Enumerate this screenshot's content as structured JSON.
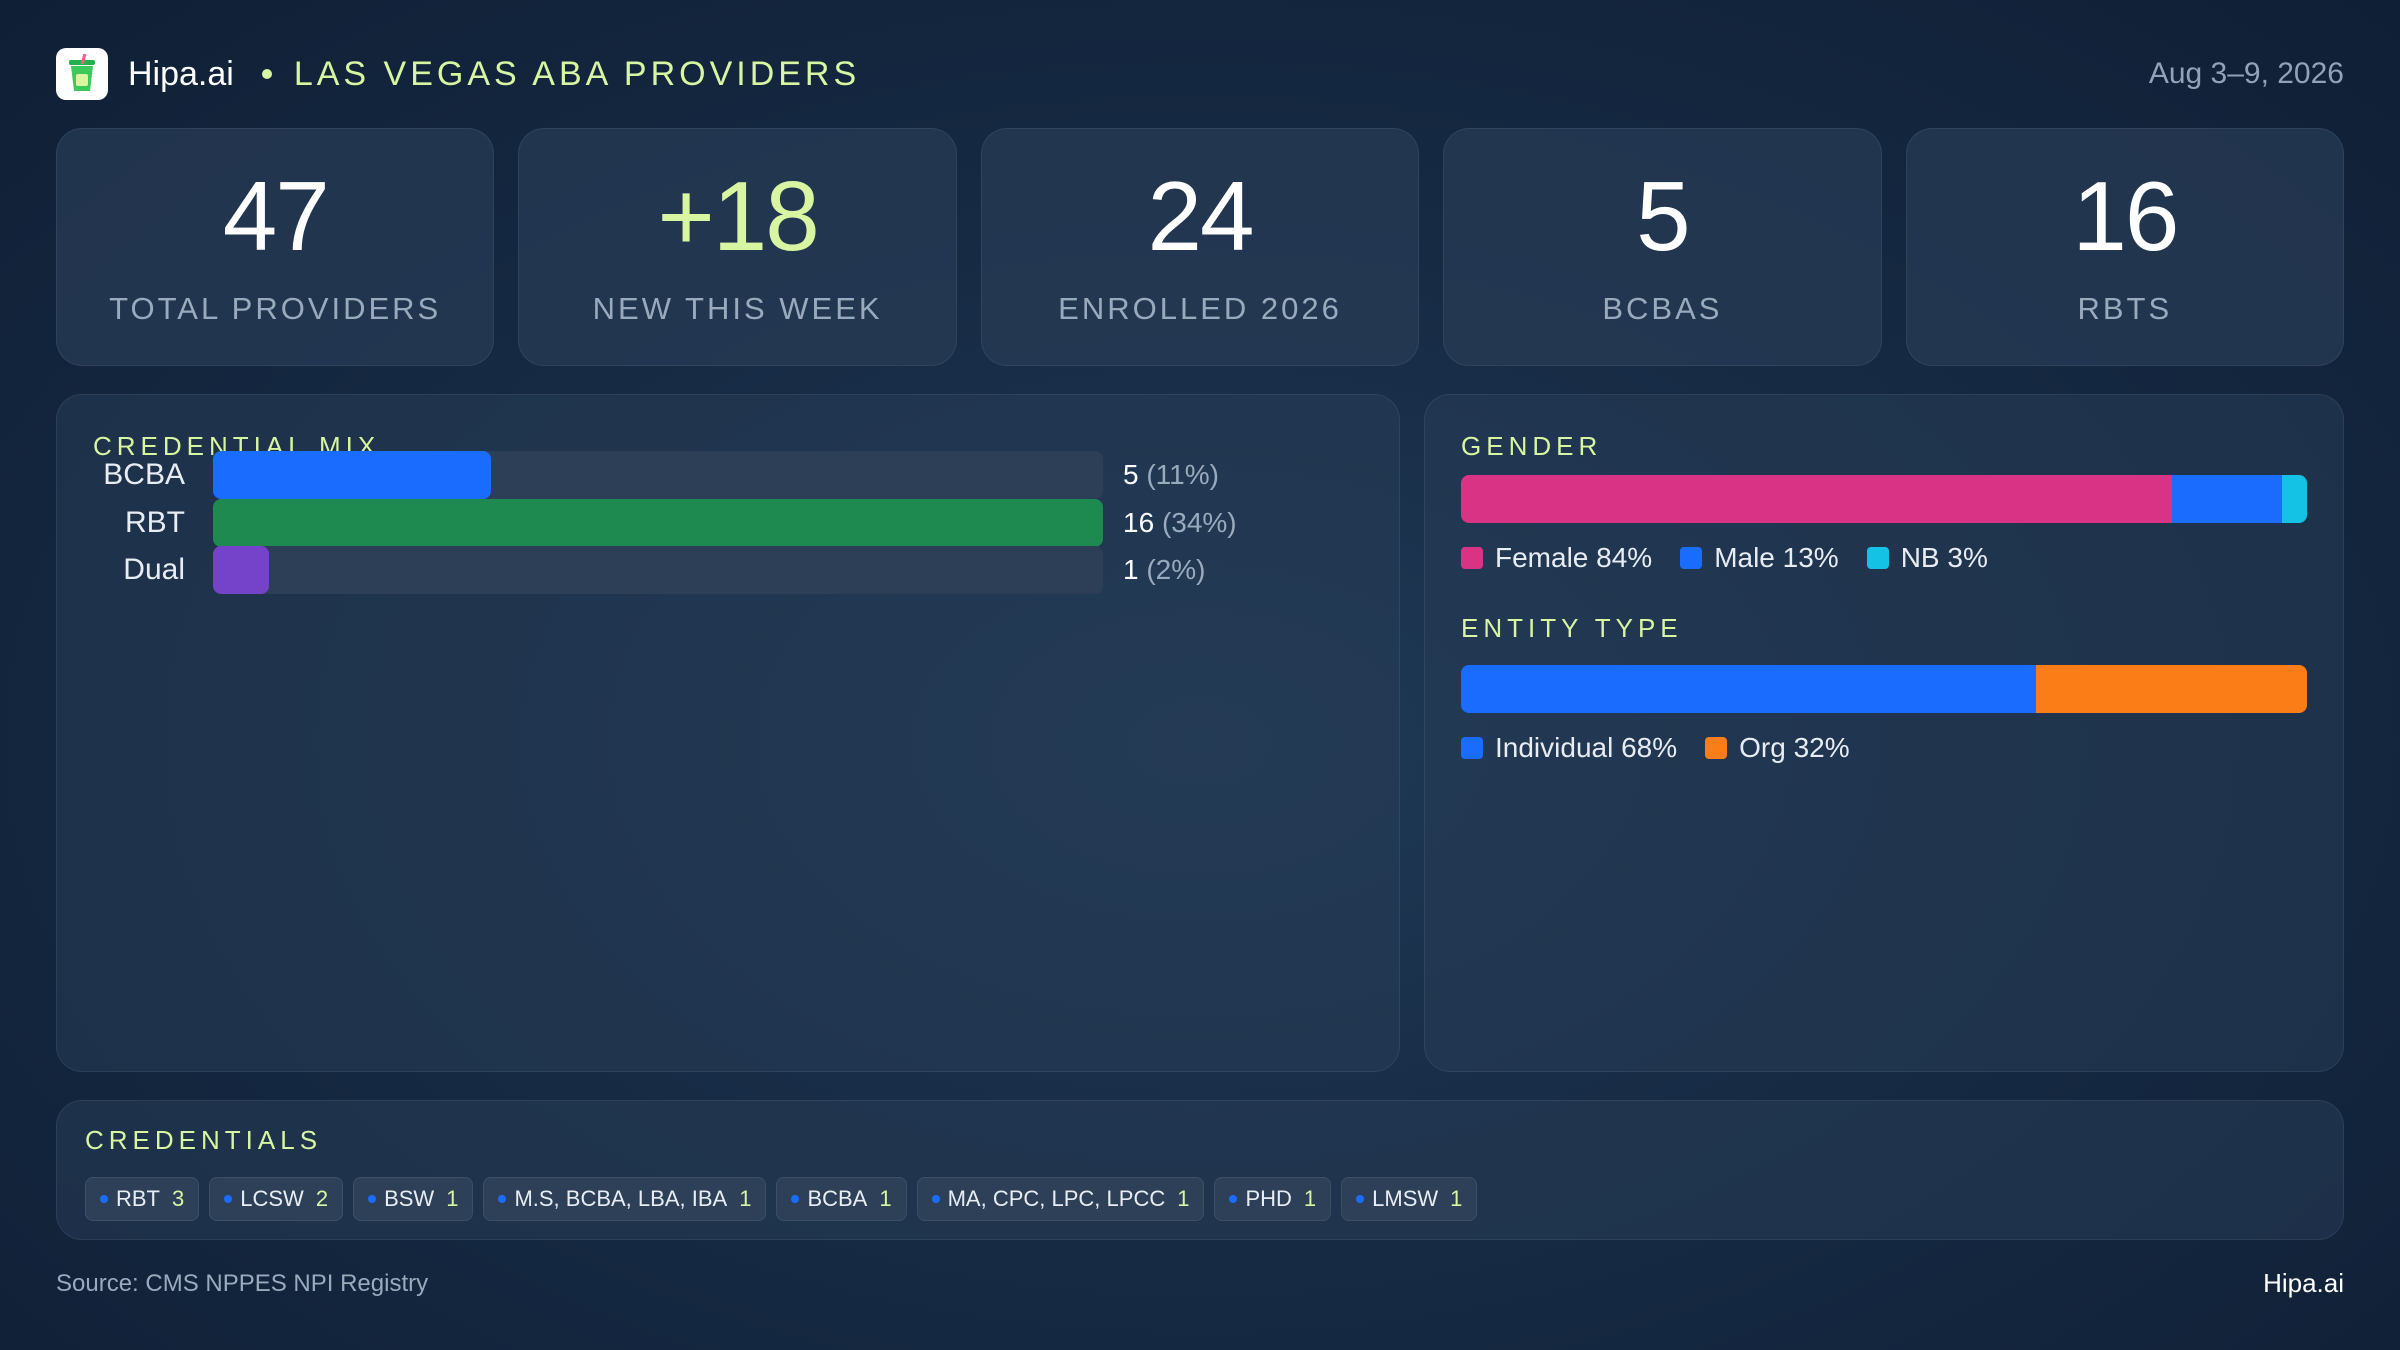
{
  "header": {
    "brand": "Hipa.ai",
    "title": "LAS VEGAS ABA PROVIDERS",
    "date": "Aug 3–9, 2026"
  },
  "kpis": [
    {
      "value": "47",
      "label": "TOTAL PROVIDERS",
      "accent": false
    },
    {
      "value": "+18",
      "label": "NEW THIS WEEK",
      "accent": true
    },
    {
      "value": "24",
      "label": "ENROLLED 2026",
      "accent": false
    },
    {
      "value": "5",
      "label": "BCBAS",
      "accent": false
    },
    {
      "value": "16",
      "label": "RBTS",
      "accent": false
    }
  ],
  "chart_data": [
    {
      "type": "bar",
      "title": "CREDENTIAL MIX",
      "orientation": "horizontal",
      "categories": [
        "BCBA",
        "RBT",
        "Dual"
      ],
      "values": [
        5,
        16,
        1
      ],
      "value_labels": [
        "5",
        "16",
        "1"
      ],
      "percent_labels": [
        "(11%)",
        "(34%)",
        "(2%)"
      ],
      "colors": [
        "#1a6cff",
        "#1e8a50",
        "#7443c9"
      ],
      "xlim": [
        0,
        16
      ]
    },
    {
      "type": "bar",
      "title": "GENDER",
      "stacked": true,
      "series": [
        {
          "name": "Female",
          "value": 84,
          "label": "Female 84%",
          "color": "#d83384"
        },
        {
          "name": "Male",
          "value": 13,
          "label": "Male 13%",
          "color": "#1a6cff"
        },
        {
          "name": "NB",
          "value": 3,
          "label": "NB 3%",
          "color": "#14c2e6"
        }
      ]
    },
    {
      "type": "bar",
      "title": "ENTITY TYPE",
      "stacked": true,
      "series": [
        {
          "name": "Individual",
          "value": 68,
          "label": "Individual 68%",
          "color": "#1a6cff"
        },
        {
          "name": "Org",
          "value": 32,
          "label": "Org 32%",
          "color": "#fb7d17"
        }
      ]
    }
  ],
  "credentials": {
    "title": "CREDENTIALS",
    "chips": [
      {
        "name": "RBT",
        "count": "3"
      },
      {
        "name": "LCSW",
        "count": "2"
      },
      {
        "name": "BSW",
        "count": "1"
      },
      {
        "name": "M.S, BCBA, LBA, IBA",
        "count": "1"
      },
      {
        "name": "BCBA",
        "count": "1"
      },
      {
        "name": "MA, CPC, LPC, LPCC",
        "count": "1"
      },
      {
        "name": "PHD",
        "count": "1"
      },
      {
        "name": "LMSW",
        "count": "1"
      }
    ]
  },
  "footer": {
    "source": "Source: CMS NPPES NPI Registry",
    "brand": "Hipa.ai"
  }
}
